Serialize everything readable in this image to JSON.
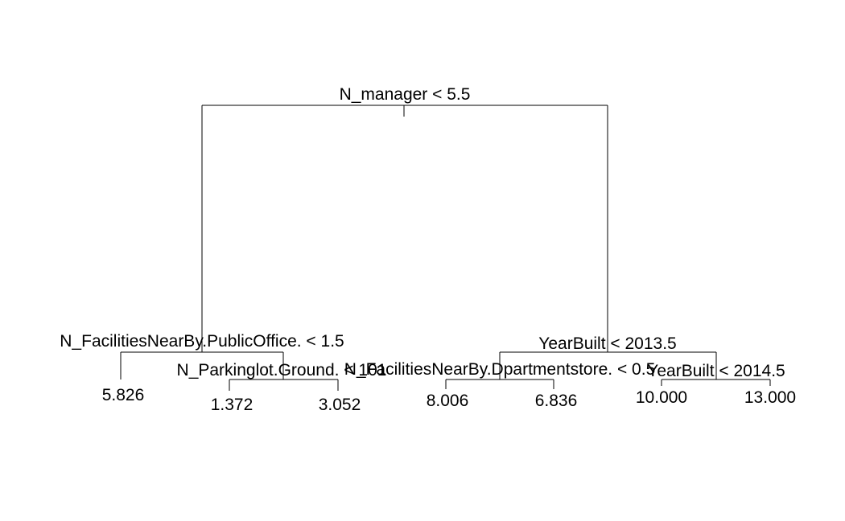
{
  "tree": {
    "root": {
      "split": "N_manager < 5.5",
      "left": {
        "split": "N_FacilitiesNearBy.PublicOffice. < 1.5",
        "left": {
          "leaf": "5.826"
        },
        "right": {
          "split": "N_Parkinglot.Ground. < 101",
          "left": {
            "leaf": "1.372"
          },
          "right": {
            "leaf": "3.052"
          }
        }
      },
      "right": {
        "split": "YearBuilt < 2013.5",
        "left": {
          "split": "N_FacilitiesNearBy.Dpartmentstore. < 0.5",
          "left": {
            "leaf": "8.006"
          },
          "right": {
            "leaf": "6.836"
          }
        },
        "right": {
          "split": "YearBuilt < 2014.5",
          "left": {
            "leaf": "10.000"
          },
          "right": {
            "leaf": "13.000"
          }
        }
      }
    }
  }
}
